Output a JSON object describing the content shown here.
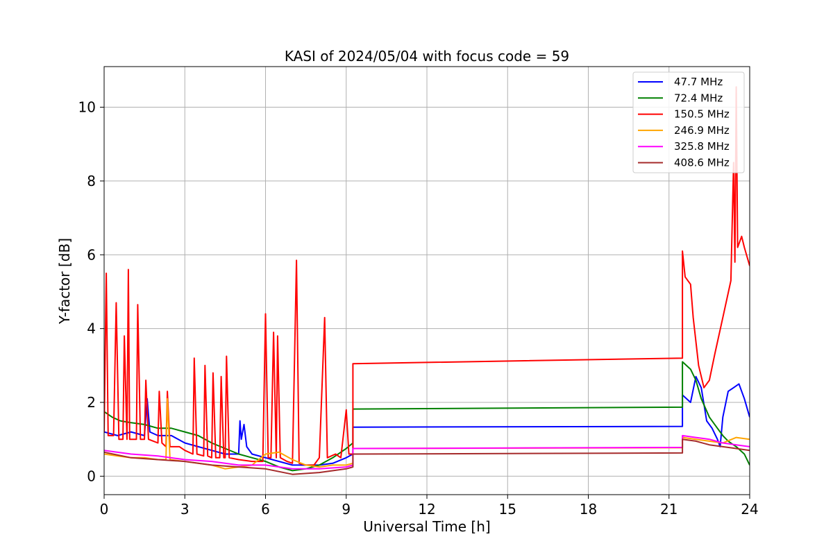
{
  "chart_data": {
    "type": "line",
    "title": "KASI of 2024/05/04 with focus code = 59",
    "xlabel": "Universal Time [h]",
    "ylabel": "Y-factor [dB]",
    "xlim": [
      0,
      24
    ],
    "ylim": [
      -0.5,
      11.1
    ],
    "xticks": [
      0,
      3,
      6,
      9,
      12,
      15,
      18,
      21,
      24
    ],
    "yticks": [
      0,
      2,
      4,
      6,
      8,
      10
    ],
    "grid": true,
    "legend_position": "top-right",
    "series": [
      {
        "name": " 47.7 MHz",
        "color": "#0000ff",
        "points": [
          [
            0,
            1.2
          ],
          [
            0.5,
            1.1
          ],
          [
            1,
            1.2
          ],
          [
            1.5,
            1.1
          ],
          [
            1.6,
            2.1
          ],
          [
            1.7,
            1.2
          ],
          [
            2,
            1.1
          ],
          [
            2.5,
            1.1
          ],
          [
            3,
            0.9
          ],
          [
            3.5,
            0.8
          ],
          [
            4,
            0.7
          ],
          [
            4.5,
            0.6
          ],
          [
            5,
            0.6
          ],
          [
            5.05,
            1.5
          ],
          [
            5.1,
            1.0
          ],
          [
            5.2,
            1.4
          ],
          [
            5.3,
            0.8
          ],
          [
            5.5,
            0.6
          ],
          [
            6,
            0.5
          ],
          [
            6.5,
            0.4
          ],
          [
            7,
            0.3
          ],
          [
            7.5,
            0.3
          ],
          [
            8,
            0.3
          ],
          [
            8.5,
            0.35
          ],
          [
            9,
            0.5
          ],
          [
            9.25,
            0.6
          ],
          [
            9.25,
            1.33
          ],
          [
            21.5,
            1.35
          ],
          [
            21.5,
            2.2
          ],
          [
            21.8,
            2.0
          ],
          [
            22,
            2.7
          ],
          [
            22.2,
            2.4
          ],
          [
            22.4,
            1.5
          ],
          [
            22.6,
            1.3
          ],
          [
            22.8,
            1.0
          ],
          [
            22.9,
            0.8
          ],
          [
            23,
            1.6
          ],
          [
            23.2,
            2.3
          ],
          [
            23.4,
            2.4
          ],
          [
            23.6,
            2.5
          ],
          [
            23.8,
            2.1
          ],
          [
            24,
            1.6
          ]
        ]
      },
      {
        "name": " 72.4 MHz",
        "color": "#008000",
        "points": [
          [
            0,
            1.75
          ],
          [
            0.3,
            1.6
          ],
          [
            0.6,
            1.5
          ],
          [
            1,
            1.45
          ],
          [
            1.5,
            1.4
          ],
          [
            2,
            1.3
          ],
          [
            2.5,
            1.3
          ],
          [
            3,
            1.2
          ],
          [
            3.5,
            1.1
          ],
          [
            4,
            0.9
          ],
          [
            4.5,
            0.75
          ],
          [
            5,
            0.6
          ],
          [
            5.5,
            0.5
          ],
          [
            6,
            0.4
          ],
          [
            6.5,
            0.25
          ],
          [
            7,
            0.15
          ],
          [
            7.5,
            0.2
          ],
          [
            8,
            0.3
          ],
          [
            8.5,
            0.5
          ],
          [
            9,
            0.75
          ],
          [
            9.25,
            0.9
          ],
          [
            9.25,
            1.82
          ],
          [
            21.5,
            1.87
          ],
          [
            21.5,
            3.1
          ],
          [
            21.8,
            2.9
          ],
          [
            22,
            2.6
          ],
          [
            22.2,
            2.1
          ],
          [
            22.5,
            1.6
          ],
          [
            22.8,
            1.3
          ],
          [
            23,
            1.1
          ],
          [
            23.2,
            0.95
          ],
          [
            23.5,
            0.8
          ],
          [
            23.8,
            0.6
          ],
          [
            24,
            0.3
          ]
        ]
      },
      {
        "name": "150.5 MHz",
        "color": "#ff0000",
        "points": [
          [
            0,
            1.2
          ],
          [
            0.08,
            5.5
          ],
          [
            0.15,
            1.1
          ],
          [
            0.35,
            1.1
          ],
          [
            0.45,
            4.7
          ],
          [
            0.55,
            1.0
          ],
          [
            0.7,
            1.0
          ],
          [
            0.75,
            3.8
          ],
          [
            0.85,
            1.0
          ],
          [
            0.9,
            5.6
          ],
          [
            0.95,
            1.0
          ],
          [
            1.2,
            1.0
          ],
          [
            1.25,
            4.65
          ],
          [
            1.35,
            1.0
          ],
          [
            1.5,
            1.0
          ],
          [
            1.55,
            2.6
          ],
          [
            1.65,
            1.0
          ],
          [
            2,
            0.9
          ],
          [
            2.05,
            2.3
          ],
          [
            2.15,
            0.9
          ],
          [
            2.3,
            0.8
          ],
          [
            2.35,
            2.3
          ],
          [
            2.45,
            0.8
          ],
          [
            2.8,
            0.8
          ],
          [
            3,
            0.7
          ],
          [
            3.3,
            0.6
          ],
          [
            3.35,
            3.2
          ],
          [
            3.45,
            0.6
          ],
          [
            3.7,
            0.55
          ],
          [
            3.75,
            3.0
          ],
          [
            3.85,
            0.55
          ],
          [
            4,
            0.5
          ],
          [
            4.05,
            2.8
          ],
          [
            4.15,
            0.5
          ],
          [
            4.3,
            0.5
          ],
          [
            4.35,
            2.7
          ],
          [
            4.45,
            0.5
          ],
          [
            4.5,
            0.5
          ],
          [
            4.55,
            3.25
          ],
          [
            4.65,
            0.5
          ],
          [
            5,
            0.45
          ],
          [
            5.5,
            0.4
          ],
          [
            5.9,
            0.4
          ],
          [
            6,
            4.4
          ],
          [
            6.1,
            0.5
          ],
          [
            6.2,
            0.5
          ],
          [
            6.3,
            3.9
          ],
          [
            6.4,
            0.5
          ],
          [
            6.45,
            3.8
          ],
          [
            6.55,
            0.5
          ],
          [
            6.8,
            0.4
          ],
          [
            7,
            0.35
          ],
          [
            7.15,
            5.85
          ],
          [
            7.25,
            0.35
          ],
          [
            7.5,
            0.3
          ],
          [
            7.8,
            0.3
          ],
          [
            8,
            0.5
          ],
          [
            8.2,
            4.3
          ],
          [
            8.3,
            0.5
          ],
          [
            8.6,
            0.6
          ],
          [
            8.8,
            0.5
          ],
          [
            9,
            1.8
          ],
          [
            9.1,
            0.6
          ],
          [
            9.25,
            0.6
          ],
          [
            9.25,
            3.05
          ],
          [
            21.5,
            3.2
          ],
          [
            21.5,
            6.1
          ],
          [
            21.6,
            5.4
          ],
          [
            21.8,
            5.2
          ],
          [
            21.9,
            4.3
          ],
          [
            22.1,
            3.0
          ],
          [
            22.3,
            2.4
          ],
          [
            22.5,
            2.6
          ],
          [
            22.7,
            3.3
          ],
          [
            23,
            4.3
          ],
          [
            23.3,
            5.3
          ],
          [
            23.4,
            8.5
          ],
          [
            23.45,
            5.8
          ],
          [
            23.5,
            10.55
          ],
          [
            23.55,
            6.2
          ],
          [
            23.7,
            6.5
          ],
          [
            23.8,
            6.2
          ],
          [
            24,
            5.7
          ]
        ]
      },
      {
        "name": "246.9 MHz",
        "color": "#ffa500",
        "points": [
          [
            0,
            0.6
          ],
          [
            0.5,
            0.55
          ],
          [
            1,
            0.5
          ],
          [
            1.5,
            0.5
          ],
          [
            2,
            0.45
          ],
          [
            2.3,
            0.45
          ],
          [
            2.35,
            2.1
          ],
          [
            2.45,
            0.45
          ],
          [
            3,
            0.4
          ],
          [
            3.5,
            0.35
          ],
          [
            4,
            0.3
          ],
          [
            4.5,
            0.2
          ],
          [
            5,
            0.25
          ],
          [
            5.5,
            0.3
          ],
          [
            6,
            0.6
          ],
          [
            6.5,
            0.65
          ],
          [
            7,
            0.45
          ],
          [
            7.5,
            0.3
          ],
          [
            8,
            0.25
          ],
          [
            8.5,
            0.3
          ],
          [
            9,
            0.3
          ],
          [
            9.25,
            0.35
          ],
          [
            9.25,
            0.75
          ],
          [
            21.5,
            0.77
          ],
          [
            21.5,
            1.05
          ],
          [
            22,
            1.0
          ],
          [
            22.5,
            0.95
          ],
          [
            23,
            0.9
          ],
          [
            23.5,
            1.05
          ],
          [
            24,
            1.0
          ]
        ]
      },
      {
        "name": "325.8 MHz",
        "color": "#ff00ff",
        "points": [
          [
            0,
            0.7
          ],
          [
            1,
            0.6
          ],
          [
            2,
            0.55
          ],
          [
            3,
            0.45
          ],
          [
            4,
            0.4
          ],
          [
            5,
            0.3
          ],
          [
            6,
            0.3
          ],
          [
            7,
            0.2
          ],
          [
            8,
            0.2
          ],
          [
            9,
            0.25
          ],
          [
            9.25,
            0.3
          ],
          [
            9.25,
            0.75
          ],
          [
            21.5,
            0.78
          ],
          [
            21.5,
            1.1
          ],
          [
            22,
            1.05
          ],
          [
            22.5,
            1.0
          ],
          [
            23,
            0.9
          ],
          [
            23.5,
            0.85
          ],
          [
            24,
            0.8
          ]
        ]
      },
      {
        "name": "408.6 MHz",
        "color": "#a52a2a",
        "points": [
          [
            0,
            0.65
          ],
          [
            1,
            0.5
          ],
          [
            2,
            0.45
          ],
          [
            3,
            0.4
          ],
          [
            4,
            0.3
          ],
          [
            5,
            0.25
          ],
          [
            6,
            0.2
          ],
          [
            7,
            0.05
          ],
          [
            8,
            0.1
          ],
          [
            9,
            0.2
          ],
          [
            9.25,
            0.25
          ],
          [
            9.25,
            0.6
          ],
          [
            21.5,
            0.63
          ],
          [
            21.5,
            1.0
          ],
          [
            22,
            0.95
          ],
          [
            22.5,
            0.85
          ],
          [
            23,
            0.8
          ],
          [
            23.5,
            0.75
          ],
          [
            24,
            0.7
          ]
        ]
      }
    ]
  }
}
